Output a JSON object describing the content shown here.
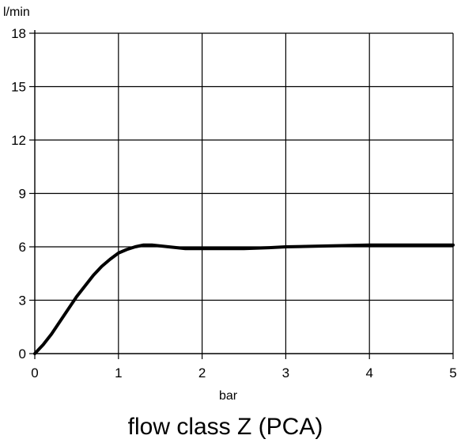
{
  "chart_data": {
    "type": "line",
    "title": "flow class Z (PCA)",
    "xlabel": "bar",
    "ylabel": "l/min",
    "xlim": [
      0,
      5
    ],
    "ylim": [
      0,
      18
    ],
    "x_ticks": [
      0,
      1,
      2,
      3,
      4,
      5
    ],
    "y_ticks": [
      0,
      3,
      6,
      9,
      12,
      15,
      18
    ],
    "grid": true,
    "legend": "none",
    "line_color": "#000000",
    "series": [
      {
        "x": [
          0,
          0.1,
          0.2,
          0.3,
          0.4,
          0.5,
          0.6,
          0.7,
          0.8,
          0.9,
          1.0,
          1.1,
          1.2,
          1.3,
          1.4,
          1.5,
          1.6,
          1.7,
          1.8,
          1.9,
          2.0,
          2.2,
          2.5,
          2.8,
          3.0,
          3.5,
          4.0,
          4.5,
          5.0
        ],
        "values": [
          0,
          0.5,
          1.1,
          1.8,
          2.5,
          3.2,
          3.8,
          4.4,
          4.9,
          5.3,
          5.65,
          5.85,
          6.0,
          6.1,
          6.1,
          6.05,
          6.0,
          5.95,
          5.9,
          5.9,
          5.9,
          5.9,
          5.9,
          5.95,
          6.0,
          6.05,
          6.1,
          6.1,
          6.1
        ]
      }
    ]
  }
}
